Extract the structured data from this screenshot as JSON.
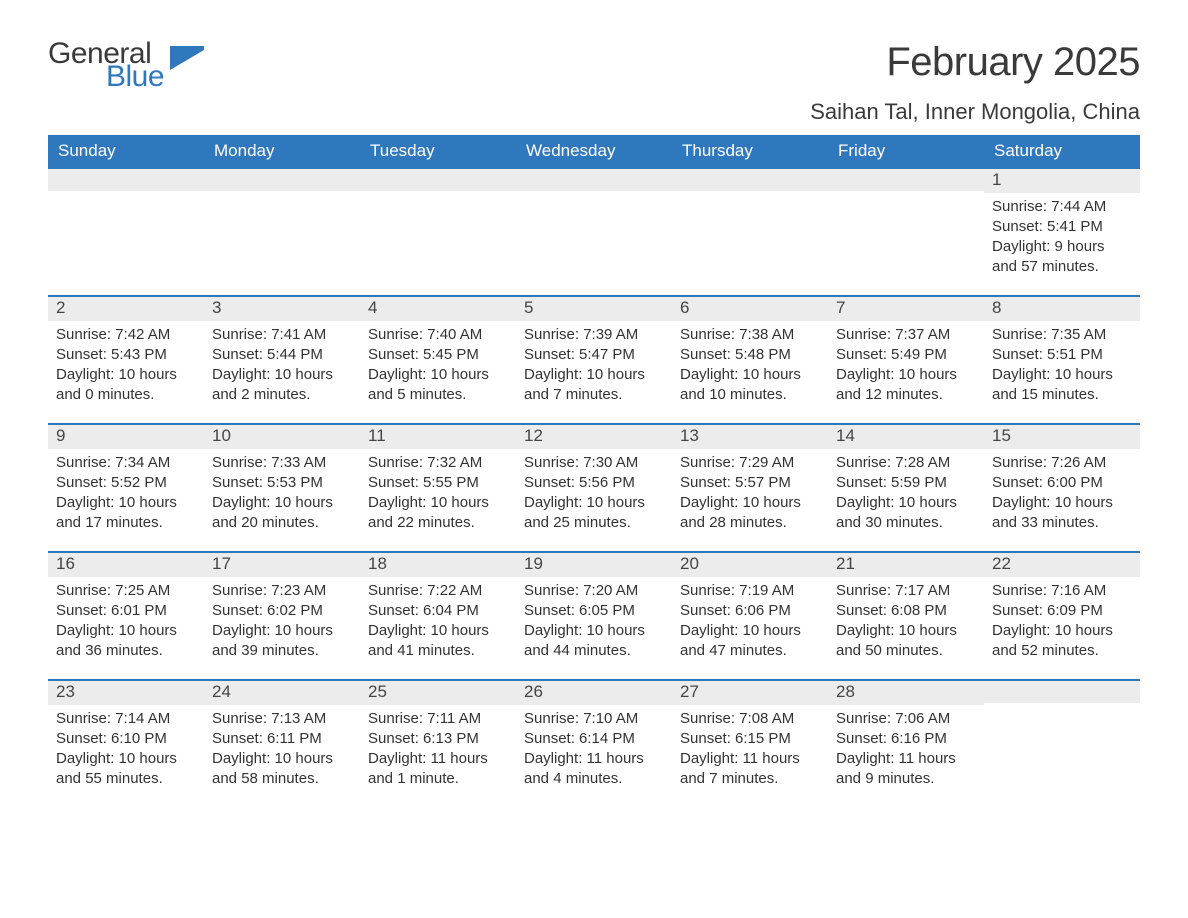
{
  "logo": {
    "line1": "General",
    "line2": "Blue",
    "flag_color": "#2f78bd"
  },
  "title": "February 2025",
  "location": "Saihan Tal, Inner Mongolia, China",
  "colors": {
    "header_bg": "#2f78bd",
    "header_text": "#ffffff",
    "row_border": "#2f78bd",
    "daynum_bg": "#ececec",
    "body_text": "#333333",
    "page_bg": "#ffffff"
  },
  "weekdays": [
    "Sunday",
    "Monday",
    "Tuesday",
    "Wednesday",
    "Thursday",
    "Friday",
    "Saturday"
  ],
  "weeks": [
    [
      {
        "day": "",
        "sunrise": "",
        "sunset": "",
        "daylight": ""
      },
      {
        "day": "",
        "sunrise": "",
        "sunset": "",
        "daylight": ""
      },
      {
        "day": "",
        "sunrise": "",
        "sunset": "",
        "daylight": ""
      },
      {
        "day": "",
        "sunrise": "",
        "sunset": "",
        "daylight": ""
      },
      {
        "day": "",
        "sunrise": "",
        "sunset": "",
        "daylight": ""
      },
      {
        "day": "",
        "sunrise": "",
        "sunset": "",
        "daylight": ""
      },
      {
        "day": "1",
        "sunrise": "Sunrise: 7:44 AM",
        "sunset": "Sunset: 5:41 PM",
        "daylight": "Daylight: 9 hours and 57 minutes."
      }
    ],
    [
      {
        "day": "2",
        "sunrise": "Sunrise: 7:42 AM",
        "sunset": "Sunset: 5:43 PM",
        "daylight": "Daylight: 10 hours and 0 minutes."
      },
      {
        "day": "3",
        "sunrise": "Sunrise: 7:41 AM",
        "sunset": "Sunset: 5:44 PM",
        "daylight": "Daylight: 10 hours and 2 minutes."
      },
      {
        "day": "4",
        "sunrise": "Sunrise: 7:40 AM",
        "sunset": "Sunset: 5:45 PM",
        "daylight": "Daylight: 10 hours and 5 minutes."
      },
      {
        "day": "5",
        "sunrise": "Sunrise: 7:39 AM",
        "sunset": "Sunset: 5:47 PM",
        "daylight": "Daylight: 10 hours and 7 minutes."
      },
      {
        "day": "6",
        "sunrise": "Sunrise: 7:38 AM",
        "sunset": "Sunset: 5:48 PM",
        "daylight": "Daylight: 10 hours and 10 minutes."
      },
      {
        "day": "7",
        "sunrise": "Sunrise: 7:37 AM",
        "sunset": "Sunset: 5:49 PM",
        "daylight": "Daylight: 10 hours and 12 minutes."
      },
      {
        "day": "8",
        "sunrise": "Sunrise: 7:35 AM",
        "sunset": "Sunset: 5:51 PM",
        "daylight": "Daylight: 10 hours and 15 minutes."
      }
    ],
    [
      {
        "day": "9",
        "sunrise": "Sunrise: 7:34 AM",
        "sunset": "Sunset: 5:52 PM",
        "daylight": "Daylight: 10 hours and 17 minutes."
      },
      {
        "day": "10",
        "sunrise": "Sunrise: 7:33 AM",
        "sunset": "Sunset: 5:53 PM",
        "daylight": "Daylight: 10 hours and 20 minutes."
      },
      {
        "day": "11",
        "sunrise": "Sunrise: 7:32 AM",
        "sunset": "Sunset: 5:55 PM",
        "daylight": "Daylight: 10 hours and 22 minutes."
      },
      {
        "day": "12",
        "sunrise": "Sunrise: 7:30 AM",
        "sunset": "Sunset: 5:56 PM",
        "daylight": "Daylight: 10 hours and 25 minutes."
      },
      {
        "day": "13",
        "sunrise": "Sunrise: 7:29 AM",
        "sunset": "Sunset: 5:57 PM",
        "daylight": "Daylight: 10 hours and 28 minutes."
      },
      {
        "day": "14",
        "sunrise": "Sunrise: 7:28 AM",
        "sunset": "Sunset: 5:59 PM",
        "daylight": "Daylight: 10 hours and 30 minutes."
      },
      {
        "day": "15",
        "sunrise": "Sunrise: 7:26 AM",
        "sunset": "Sunset: 6:00 PM",
        "daylight": "Daylight: 10 hours and 33 minutes."
      }
    ],
    [
      {
        "day": "16",
        "sunrise": "Sunrise: 7:25 AM",
        "sunset": "Sunset: 6:01 PM",
        "daylight": "Daylight: 10 hours and 36 minutes."
      },
      {
        "day": "17",
        "sunrise": "Sunrise: 7:23 AM",
        "sunset": "Sunset: 6:02 PM",
        "daylight": "Daylight: 10 hours and 39 minutes."
      },
      {
        "day": "18",
        "sunrise": "Sunrise: 7:22 AM",
        "sunset": "Sunset: 6:04 PM",
        "daylight": "Daylight: 10 hours and 41 minutes."
      },
      {
        "day": "19",
        "sunrise": "Sunrise: 7:20 AM",
        "sunset": "Sunset: 6:05 PM",
        "daylight": "Daylight: 10 hours and 44 minutes."
      },
      {
        "day": "20",
        "sunrise": "Sunrise: 7:19 AM",
        "sunset": "Sunset: 6:06 PM",
        "daylight": "Daylight: 10 hours and 47 minutes."
      },
      {
        "day": "21",
        "sunrise": "Sunrise: 7:17 AM",
        "sunset": "Sunset: 6:08 PM",
        "daylight": "Daylight: 10 hours and 50 minutes."
      },
      {
        "day": "22",
        "sunrise": "Sunrise: 7:16 AM",
        "sunset": "Sunset: 6:09 PM",
        "daylight": "Daylight: 10 hours and 52 minutes."
      }
    ],
    [
      {
        "day": "23",
        "sunrise": "Sunrise: 7:14 AM",
        "sunset": "Sunset: 6:10 PM",
        "daylight": "Daylight: 10 hours and 55 minutes."
      },
      {
        "day": "24",
        "sunrise": "Sunrise: 7:13 AM",
        "sunset": "Sunset: 6:11 PM",
        "daylight": "Daylight: 10 hours and 58 minutes."
      },
      {
        "day": "25",
        "sunrise": "Sunrise: 7:11 AM",
        "sunset": "Sunset: 6:13 PM",
        "daylight": "Daylight: 11 hours and 1 minute."
      },
      {
        "day": "26",
        "sunrise": "Sunrise: 7:10 AM",
        "sunset": "Sunset: 6:14 PM",
        "daylight": "Daylight: 11 hours and 4 minutes."
      },
      {
        "day": "27",
        "sunrise": "Sunrise: 7:08 AM",
        "sunset": "Sunset: 6:15 PM",
        "daylight": "Daylight: 11 hours and 7 minutes."
      },
      {
        "day": "28",
        "sunrise": "Sunrise: 7:06 AM",
        "sunset": "Sunset: 6:16 PM",
        "daylight": "Daylight: 11 hours and 9 minutes."
      },
      {
        "day": "",
        "sunrise": "",
        "sunset": "",
        "daylight": ""
      }
    ]
  ]
}
